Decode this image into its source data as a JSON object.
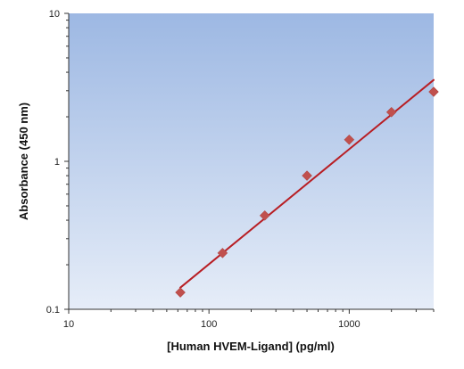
{
  "chart_data": {
    "type": "scatter",
    "xlabel": "[Human HVEM-Ligand] (pg/ml)",
    "ylabel": "Absorbance (450 nm)",
    "x_scale": "log",
    "y_scale": "log",
    "xlim": [
      10,
      4000
    ],
    "ylim": [
      0.1,
      10
    ],
    "x_ticks": [
      "10",
      "100",
      "1000"
    ],
    "y_ticks": [
      "0.1",
      "1",
      "10"
    ],
    "grid": false,
    "legend": "none",
    "series": [
      {
        "x": [
          62.5,
          125,
          250,
          500,
          1000,
          2000,
          4000
        ],
        "y": [
          0.13,
          0.24,
          0.43,
          0.8,
          1.4,
          2.15,
          2.95
        ]
      }
    ],
    "fit_curve": {
      "x": [
        62.5,
        4000
      ],
      "y": [
        0.14,
        3.55
      ]
    },
    "colors": {
      "marker": "#c0504d",
      "fit_line": "#b81e24",
      "plot_top": "#9db8e3",
      "plot_bottom": "#e6edf8"
    }
  }
}
